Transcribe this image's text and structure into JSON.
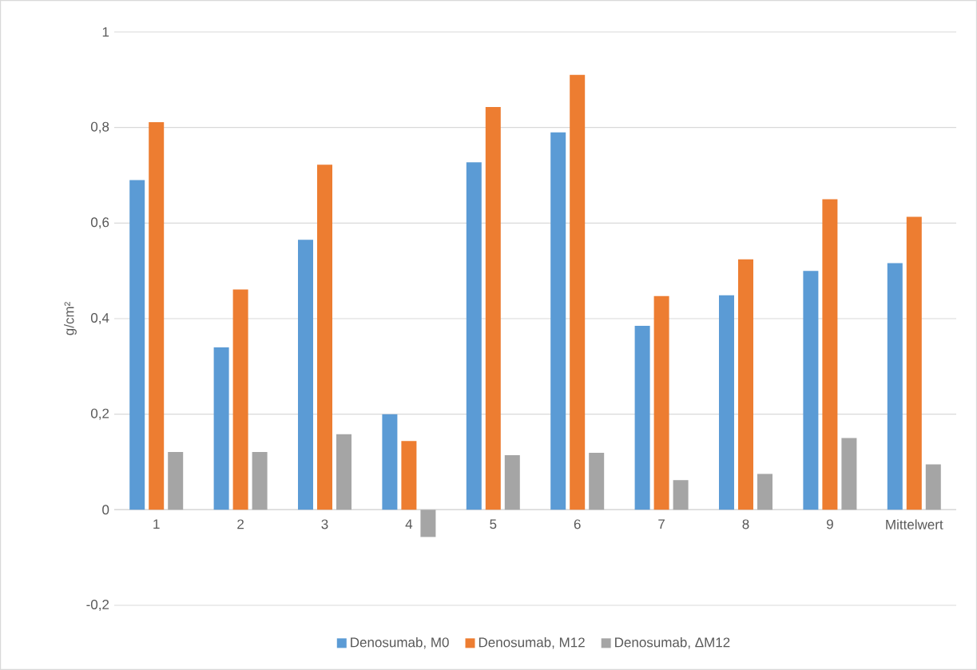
{
  "chart_data": {
    "type": "bar",
    "ylabel": "g/cm²",
    "categories": [
      "1",
      "2",
      "3",
      "4",
      "5",
      "6",
      "7",
      "8",
      "9",
      "Mittelwert"
    ],
    "series": [
      {
        "name": "Denosumab, M0",
        "color": "#5b9bd5",
        "values": [
          0.69,
          0.34,
          0.565,
          0.2,
          0.727,
          0.79,
          0.385,
          0.449,
          0.5,
          0.516
        ]
      },
      {
        "name": "Denosumab, M12",
        "color": "#ed7d31",
        "values": [
          0.811,
          0.461,
          0.722,
          0.144,
          0.843,
          0.91,
          0.447,
          0.524,
          0.65,
          0.613
        ]
      },
      {
        "name": "Denosumab, ΔM12",
        "color": "#a5a5a5",
        "values": [
          0.121,
          0.121,
          0.158,
          -0.057,
          0.114,
          0.119,
          0.062,
          0.075,
          0.15,
          0.095
        ]
      }
    ],
    "ylim": [
      -0.2,
      1
    ],
    "yticks": [
      {
        "value": -0.2,
        "label": "-0,2"
      },
      0,
      {
        "value": 0.2,
        "label": "0,2"
      },
      {
        "value": 0.4,
        "label": "0,4"
      },
      {
        "value": 0.6,
        "label": "0,6"
      },
      {
        "value": 0.8,
        "label": "0,8"
      },
      1
    ],
    "grid": "y",
    "legend": "bottom"
  }
}
